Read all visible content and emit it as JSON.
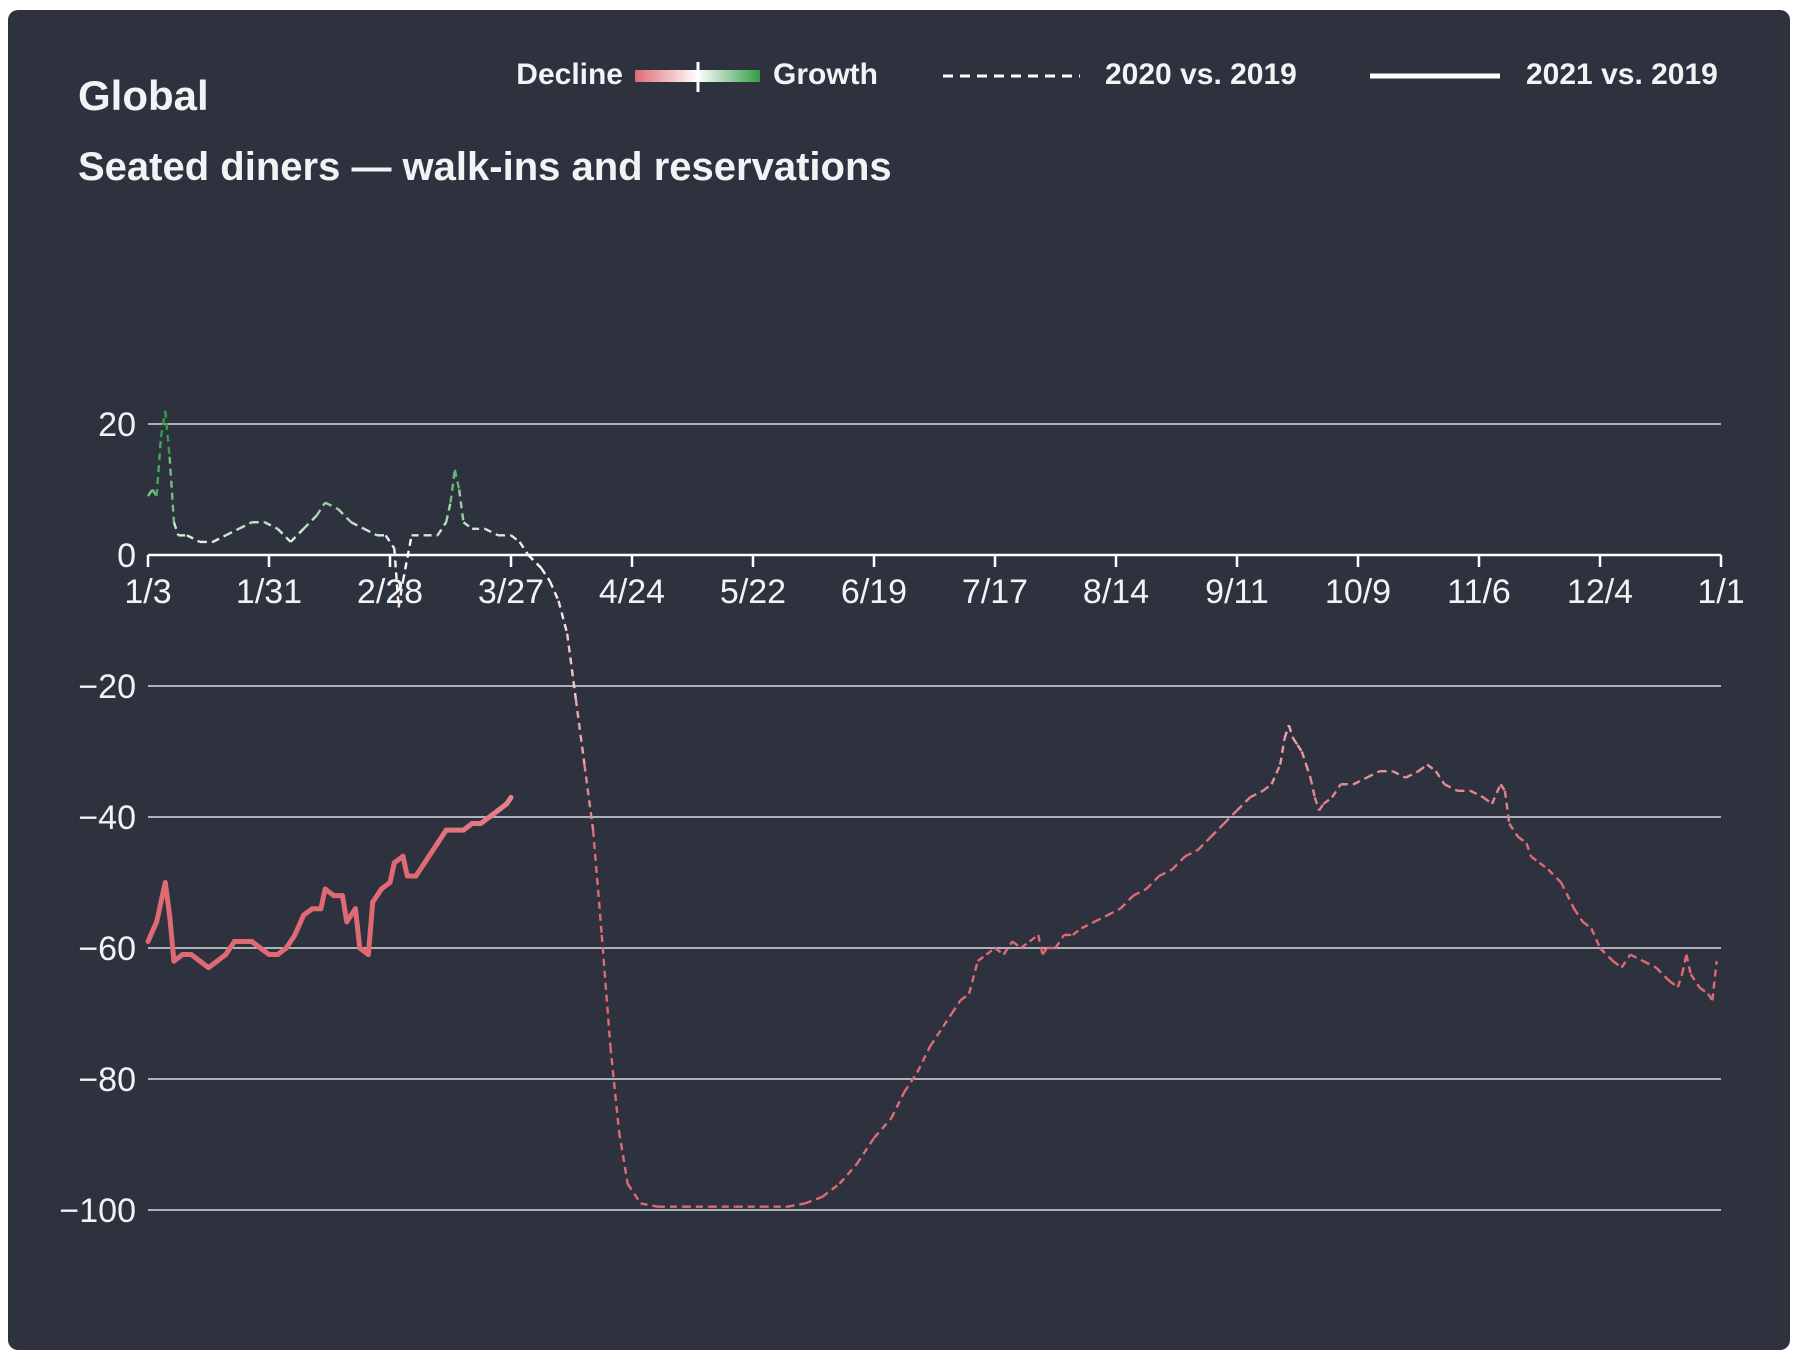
{
  "chart_data": {
    "type": "line",
    "title": "Global",
    "subtitle": "Seated diners — walk-ins and reservations",
    "legend": {
      "gradient_left_label": "Decline",
      "gradient_right_label": "Growth",
      "position": "top-right",
      "items": [
        "2020 vs. 2019",
        "2021 vs. 2019"
      ]
    },
    "x_ticks": [
      "1/3",
      "1/31",
      "2/28",
      "3/27",
      "4/24",
      "5/22",
      "6/19",
      "7/17",
      "8/14",
      "9/11",
      "10/9",
      "11/6",
      "12/4",
      "1/1"
    ],
    "y_ticks": [
      "20",
      "0",
      "−20",
      "−40",
      "−60",
      "−80",
      "−100"
    ],
    "y_tick_values": [
      20,
      0,
      -20,
      -40,
      -60,
      -80,
      -100
    ],
    "xlim": [
      0,
      364
    ],
    "ylim": [
      -110,
      30
    ],
    "grid": true,
    "colors": {
      "background": "#2e323f",
      "grid": "#d9dbe0",
      "text": "#f2f3f5",
      "decline": "#e06a74",
      "neutral": "#ffffff",
      "growth": "#2f9e44"
    },
    "series": [
      {
        "name": "2020 vs. 2019",
        "style": "dashed",
        "points": [
          [
            0,
            9
          ],
          [
            1,
            10
          ],
          [
            2,
            9
          ],
          [
            3,
            18
          ],
          [
            4,
            22
          ],
          [
            5,
            15
          ],
          [
            6,
            5
          ],
          [
            7,
            3
          ],
          [
            9,
            3
          ],
          [
            12,
            2
          ],
          [
            15,
            2
          ],
          [
            18,
            3
          ],
          [
            21,
            4
          ],
          [
            24,
            5
          ],
          [
            27,
            5
          ],
          [
            30,
            4
          ],
          [
            33,
            2
          ],
          [
            36,
            4
          ],
          [
            39,
            6
          ],
          [
            41,
            8
          ],
          [
            44,
            7
          ],
          [
            47,
            5
          ],
          [
            50,
            4
          ],
          [
            53,
            3
          ],
          [
            55,
            3
          ],
          [
            57,
            1
          ],
          [
            58,
            -8
          ],
          [
            59,
            -4
          ],
          [
            61,
            3
          ],
          [
            64,
            3
          ],
          [
            67,
            3
          ],
          [
            69,
            5
          ],
          [
            70,
            8
          ],
          [
            71,
            13
          ],
          [
            72,
            10
          ],
          [
            73,
            5
          ],
          [
            75,
            4
          ],
          [
            78,
            4
          ],
          [
            81,
            3
          ],
          [
            84,
            3
          ],
          [
            86,
            2
          ],
          [
            88,
            0
          ],
          [
            91,
            -2
          ],
          [
            93,
            -4
          ],
          [
            95,
            -7
          ],
          [
            97,
            -12
          ],
          [
            99,
            -22
          ],
          [
            101,
            -32
          ],
          [
            103,
            -42
          ],
          [
            105,
            -58
          ],
          [
            107,
            -75
          ],
          [
            109,
            -88
          ],
          [
            111,
            -96
          ],
          [
            114,
            -99
          ],
          [
            118,
            -99.5
          ],
          [
            124,
            -99.5
          ],
          [
            130,
            -99.5
          ],
          [
            136,
            -99.5
          ],
          [
            142,
            -99.5
          ],
          [
            148,
            -99.5
          ],
          [
            152,
            -99
          ],
          [
            156,
            -98
          ],
          [
            160,
            -96
          ],
          [
            164,
            -93
          ],
          [
            168,
            -89
          ],
          [
            172,
            -86
          ],
          [
            175,
            -82
          ],
          [
            178,
            -79
          ],
          [
            181,
            -75
          ],
          [
            184,
            -72
          ],
          [
            186,
            -70
          ],
          [
            188,
            -68
          ],
          [
            190,
            -67
          ],
          [
            192,
            -62
          ],
          [
            194,
            -61
          ],
          [
            196,
            -60
          ],
          [
            198,
            -61
          ],
          [
            200,
            -59
          ],
          [
            202,
            -60
          ],
          [
            204,
            -59
          ],
          [
            206,
            -58
          ],
          [
            207,
            -61
          ],
          [
            208,
            -60
          ],
          [
            210,
            -60
          ],
          [
            212,
            -58
          ],
          [
            214,
            -58
          ],
          [
            216,
            -57
          ],
          [
            219,
            -56
          ],
          [
            222,
            -55
          ],
          [
            225,
            -54
          ],
          [
            228,
            -52
          ],
          [
            231,
            -51
          ],
          [
            234,
            -49
          ],
          [
            237,
            -48
          ],
          [
            240,
            -46
          ],
          [
            243,
            -45
          ],
          [
            246,
            -43
          ],
          [
            249,
            -41
          ],
          [
            252,
            -39
          ],
          [
            255,
            -37
          ],
          [
            258,
            -36
          ],
          [
            260,
            -35
          ],
          [
            262,
            -32
          ],
          [
            263,
            -28
          ],
          [
            264,
            -26
          ],
          [
            265,
            -28
          ],
          [
            266,
            -29
          ],
          [
            267,
            -30
          ],
          [
            268,
            -32
          ],
          [
            269,
            -34
          ],
          [
            270,
            -37
          ],
          [
            271,
            -39
          ],
          [
            272,
            -38
          ],
          [
            274,
            -37
          ],
          [
            276,
            -35
          ],
          [
            279,
            -35
          ],
          [
            282,
            -34
          ],
          [
            285,
            -33
          ],
          [
            288,
            -33
          ],
          [
            291,
            -34
          ],
          [
            294,
            -33
          ],
          [
            296,
            -32
          ],
          [
            298,
            -33
          ],
          [
            300,
            -35
          ],
          [
            303,
            -36
          ],
          [
            306,
            -36
          ],
          [
            309,
            -37
          ],
          [
            311,
            -38
          ],
          [
            313,
            -35
          ],
          [
            314,
            -36
          ],
          [
            315,
            -41
          ],
          [
            317,
            -43
          ],
          [
            319,
            -44
          ],
          [
            320,
            -46
          ],
          [
            322,
            -47
          ],
          [
            324,
            -48
          ],
          [
            327,
            -50
          ],
          [
            330,
            -54
          ],
          [
            332,
            -56
          ],
          [
            334,
            -57
          ],
          [
            336,
            -60
          ],
          [
            339,
            -62
          ],
          [
            341,
            -63
          ],
          [
            343,
            -61
          ],
          [
            346,
            -62
          ],
          [
            349,
            -63
          ],
          [
            352,
            -65
          ],
          [
            354,
            -66
          ],
          [
            355,
            -64
          ],
          [
            356,
            -61
          ],
          [
            357,
            -64
          ],
          [
            359,
            -66
          ],
          [
            361,
            -67
          ],
          [
            362,
            -68
          ],
          [
            363,
            -62
          ]
        ]
      },
      {
        "name": "2021 vs. 2019",
        "style": "solid",
        "points": [
          [
            0,
            -59
          ],
          [
            2,
            -56
          ],
          [
            3,
            -53
          ],
          [
            4,
            -50
          ],
          [
            5,
            -55
          ],
          [
            6,
            -62
          ],
          [
            8,
            -61
          ],
          [
            10,
            -61
          ],
          [
            12,
            -62
          ],
          [
            14,
            -63
          ],
          [
            16,
            -62
          ],
          [
            18,
            -61
          ],
          [
            20,
            -59
          ],
          [
            22,
            -59
          ],
          [
            24,
            -59
          ],
          [
            26,
            -60
          ],
          [
            28,
            -61
          ],
          [
            30,
            -61
          ],
          [
            32,
            -60
          ],
          [
            34,
            -58
          ],
          [
            36,
            -55
          ],
          [
            38,
            -54
          ],
          [
            40,
            -54
          ],
          [
            41,
            -51
          ],
          [
            43,
            -52
          ],
          [
            45,
            -52
          ],
          [
            46,
            -56
          ],
          [
            48,
            -54
          ],
          [
            49,
            -60
          ],
          [
            51,
            -61
          ],
          [
            52,
            -53
          ],
          [
            54,
            -51
          ],
          [
            56,
            -50
          ],
          [
            57,
            -47
          ],
          [
            59,
            -46
          ],
          [
            60,
            -49
          ],
          [
            62,
            -49
          ],
          [
            64,
            -47
          ],
          [
            66,
            -45
          ],
          [
            67,
            -44
          ],
          [
            69,
            -42
          ],
          [
            71,
            -42
          ],
          [
            73,
            -42
          ],
          [
            75,
            -41
          ],
          [
            77,
            -41
          ],
          [
            79,
            -40
          ],
          [
            81,
            -39
          ],
          [
            83,
            -38
          ],
          [
            84,
            -37
          ]
        ]
      }
    ]
  }
}
